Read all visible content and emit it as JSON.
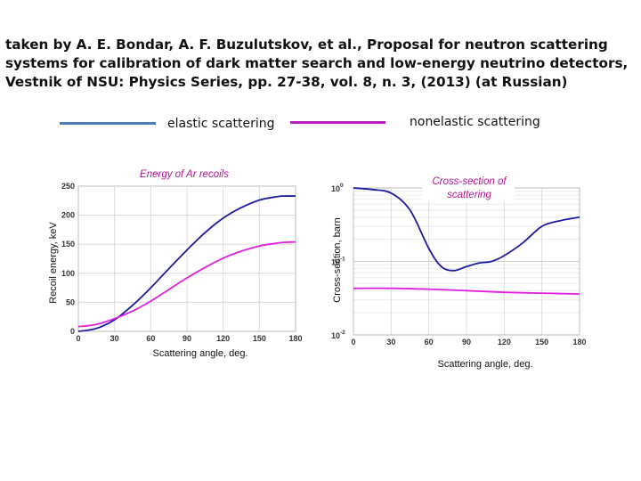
{
  "header": {
    "citation": "taken by A. E. Bondar, A. F. Buzulutskov, et al., Proposal for neutron scattering systems for calibration of dark matter search and low-energy neutrino detectors, Vestnik of NSU: Physics Series, pp. 27-38, vol. 8, n. 3, (2013) (at Russian)"
  },
  "legend": {
    "elastic_label": "elastic scattering",
    "nonelastic_label": "nonelastic scattering",
    "elastic_color": "#4f7fc0",
    "nonelastic_color": "#b81fb8"
  },
  "chart_data": [
    {
      "type": "line",
      "title": "Energy of Ar recoils",
      "xlabel": "Scattering angle, deg.",
      "ylabel": "Recoil energy, keV",
      "xlim": [
        0,
        180
      ],
      "ylim": [
        0,
        250
      ],
      "xticks": [
        0,
        30,
        60,
        90,
        120,
        150,
        180
      ],
      "yticks": [
        0,
        50,
        100,
        150,
        200,
        250
      ],
      "xtick_labels": [
        "0",
        "30",
        "60",
        "90",
        "120",
        "150",
        "180"
      ],
      "ytick_labels": [
        "0",
        "50",
        "100",
        "150",
        "200",
        "250"
      ],
      "series": [
        {
          "name": "elastic scattering",
          "color": "#1c1c9e",
          "x": [
            0,
            15,
            30,
            45,
            60,
            75,
            90,
            105,
            120,
            135,
            150,
            165,
            170,
            180
          ],
          "y": [
            0,
            5,
            20,
            45,
            75,
            108,
            140,
            170,
            195,
            213,
            226,
            232,
            233,
            233
          ]
        },
        {
          "name": "nonelastic scattering",
          "color": "#e020e0",
          "x": [
            0,
            15,
            30,
            45,
            60,
            75,
            90,
            105,
            120,
            135,
            150,
            165,
            170,
            180
          ],
          "y": [
            8,
            12,
            22,
            35,
            52,
            72,
            92,
            110,
            126,
            138,
            147,
            152,
            153,
            154
          ]
        }
      ]
    },
    {
      "type": "line",
      "title": "Cross-section of scattering",
      "xlabel": "Scattering angle, deg.",
      "ylabel": "Cross-section, barn",
      "yscale": "log",
      "xlim": [
        0,
        180
      ],
      "ylim": [
        0.01,
        1
      ],
      "xticks": [
        0,
        30,
        60,
        90,
        120,
        150,
        180
      ],
      "xtick_labels": [
        "0",
        "30",
        "60",
        "90",
        "120",
        "150",
        "180"
      ],
      "yticks": [
        0.01,
        0.1,
        1
      ],
      "ytick_labels": [
        {
          "base": "10",
          "exp": "-2"
        },
        {
          "base": "10",
          "exp": "-1"
        },
        {
          "base": "10",
          "exp": "0"
        }
      ],
      "series": [
        {
          "name": "elastic scattering",
          "color": "#1c1c9e",
          "x": [
            0,
            15,
            30,
            45,
            60,
            70,
            80,
            90,
            100,
            110,
            120,
            135,
            150,
            165,
            180
          ],
          "y": [
            1.0,
            0.95,
            0.85,
            0.5,
            0.15,
            0.085,
            0.075,
            0.085,
            0.095,
            0.1,
            0.12,
            0.18,
            0.3,
            0.36,
            0.4
          ]
        },
        {
          "name": "nonelastic scattering",
          "color": "#e020e0",
          "x": [
            0,
            30,
            60,
            90,
            120,
            150,
            180
          ],
          "y": [
            0.043,
            0.043,
            0.042,
            0.04,
            0.038,
            0.037,
            0.036
          ]
        }
      ]
    }
  ]
}
